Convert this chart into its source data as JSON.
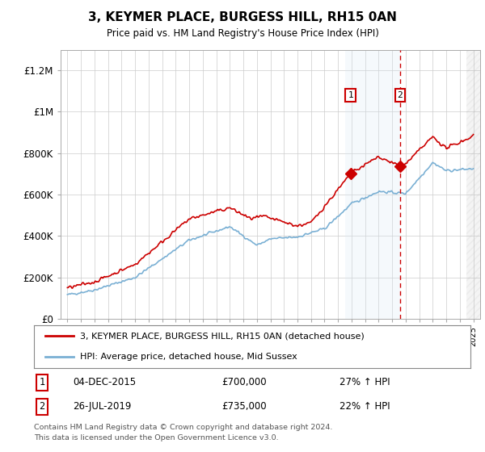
{
  "title": "3, KEYMER PLACE, BURGESS HILL, RH15 0AN",
  "subtitle": "Price paid vs. HM Land Registry's House Price Index (HPI)",
  "ylabel_ticks": [
    "£0",
    "£200K",
    "£400K",
    "£600K",
    "£800K",
    "£1M",
    "£1.2M"
  ],
  "ytick_values": [
    0,
    200000,
    400000,
    600000,
    800000,
    1000000,
    1200000
  ],
  "ylim": [
    0,
    1300000
  ],
  "xlim_start": 1994.5,
  "xlim_end": 2025.5,
  "transaction1_date": 2015.92,
  "transaction1_price": 700000,
  "transaction2_date": 2019.57,
  "transaction2_price": 735000,
  "red_line_color": "#cc0000",
  "blue_line_color": "#7ab0d4",
  "shading_color": "#daeaf5",
  "dashed_line_color": "#cc0000",
  "hatch_color": "#dddddd",
  "legend_label_red": "3, KEYMER PLACE, BURGESS HILL, RH15 0AN (detached house)",
  "legend_label_blue": "HPI: Average price, detached house, Mid Sussex",
  "footer_line1": "Contains HM Land Registry data © Crown copyright and database right 2024.",
  "footer_line2": "This data is licensed under the Open Government Licence v3.0.",
  "annotation1_date": "04-DEC-2015",
  "annotation1_price": "£700,000",
  "annotation1_hpi": "27% ↑ HPI",
  "annotation2_date": "26-JUL-2019",
  "annotation2_price": "£735,000",
  "annotation2_hpi": "22% ↑ HPI",
  "shade_start": 2015.5,
  "shade_mid": 2019.57,
  "shade_end": 2025.5,
  "hatch_start": 2024.5
}
